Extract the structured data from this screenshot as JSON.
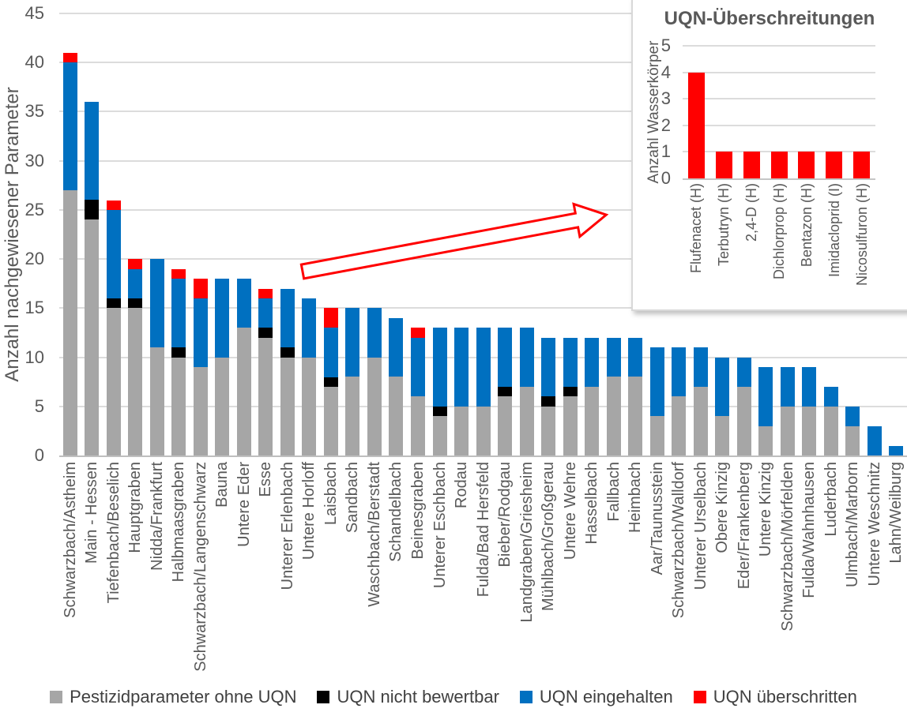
{
  "legend": {
    "items": [
      {
        "label": "Pestizidparameter ohne UQN",
        "color": "#A6A6A6"
      },
      {
        "label": "UQN nicht bewertbar",
        "color": "#000000"
      },
      {
        "label": "UQN eingehalten",
        "color": "#0070C0"
      },
      {
        "label": "UQN überschritten",
        "color": "#FF0000"
      }
    ]
  },
  "chart_data": [
    {
      "type": "bar",
      "stacked": true,
      "title": "",
      "xlabel": "",
      "ylabel": "Anzahl nachgewiesener Parameter",
      "ylim": [
        0,
        45
      ],
      "ytick_step": 5,
      "grid": true,
      "legend_position": "bottom",
      "categories": [
        "Schwarzbach/Astheim",
        "Main - Hessen",
        "Tiefenbach/Beselich",
        "Hauptgraben",
        "Nidda/Frankfurt",
        "Halbmaasgraben",
        "Schwarzbach/Langenschwarz",
        "Bauna",
        "Untere Eder",
        "Esse",
        "Unterer Erlenbach",
        "Untere Horloff",
        "Laisbach",
        "Sandbach",
        "Waschbach/Berstadt",
        "Schandelbach",
        "Beinesgraben",
        "Unterer Eschbach",
        "Rodau",
        "Fulda/Bad Hersfeld",
        "Bieber/Rodgau",
        "Landgraben/Griesheim",
        "Mühlbach/Großgerau",
        "Untere Wehre",
        "Hasselbach",
        "Fallbach",
        "Heimbach",
        "Aar/Taunusstein",
        "Schwarzbach/Walldorf",
        "Unterer Urselbach",
        "Obere Kinzig",
        "Eder/Frankenberg",
        "Untere Kinzig",
        "Schwarzbach/Mörfelden",
        "Fulda/Wahnhausen",
        "Luderbach",
        "Ulmbach/Marborn",
        "Untere Weschnitz",
        "Lahn/Weilburg"
      ],
      "series": [
        {
          "name": "Pestizidparameter ohne UQN",
          "color": "#A6A6A6",
          "values": [
            27,
            24,
            15,
            15,
            11,
            10,
            9,
            10,
            13,
            12,
            10,
            10,
            7,
            8,
            10,
            8,
            6,
            4,
            5,
            5,
            6,
            7,
            5,
            6,
            7,
            8,
            8,
            4,
            6,
            7,
            4,
            7,
            3,
            5,
            5,
            5,
            3,
            0,
            0
          ]
        },
        {
          "name": "UQN nicht bewertbar",
          "color": "#000000",
          "values": [
            0,
            2,
            1,
            1,
            0,
            1,
            0,
            0,
            0,
            1,
            1,
            0,
            1,
            0,
            0,
            0,
            0,
            1,
            0,
            0,
            1,
            0,
            1,
            1,
            0,
            0,
            0,
            0,
            0,
            0,
            0,
            0,
            0,
            0,
            0,
            0,
            0,
            0,
            0
          ]
        },
        {
          "name": "UQN eingehalten",
          "color": "#0070C0",
          "values": [
            13,
            10,
            9,
            3,
            9,
            7,
            7,
            8,
            5,
            3,
            6,
            6,
            5,
            7,
            5,
            6,
            6,
            8,
            8,
            8,
            6,
            6,
            6,
            5,
            5,
            4,
            4,
            7,
            5,
            4,
            6,
            3,
            6,
            4,
            4,
            2,
            2,
            3,
            1
          ]
        },
        {
          "name": "UQN überschritten",
          "color": "#FF0000",
          "values": [
            1,
            0,
            1,
            1,
            0,
            1,
            2,
            0,
            0,
            1,
            0,
            0,
            2,
            0,
            0,
            0,
            1,
            0,
            0,
            0,
            0,
            0,
            0,
            0,
            0,
            0,
            0,
            0,
            0,
            0,
            0,
            0,
            0,
            0,
            0,
            0,
            0,
            0,
            0
          ]
        }
      ]
    },
    {
      "type": "bar",
      "stacked": false,
      "title": "UQN-Überschreitungen",
      "xlabel": "",
      "ylabel": "Anzahl Wasserkörper",
      "ylim": [
        0,
        5
      ],
      "ytick_step": 1,
      "grid": true,
      "categories": [
        "Flufenacet (H)",
        "Terbutryn (H)",
        "2,4-D (H)",
        "Dichlorprop (H)",
        "Bentazon (H)",
        "Imidacloprid (I)",
        "Nicosulfuron (H)"
      ],
      "series": [
        {
          "name": "UQN überschritten",
          "color": "#FF0000",
          "values": [
            4,
            1,
            1,
            1,
            1,
            1,
            1
          ]
        }
      ]
    }
  ]
}
